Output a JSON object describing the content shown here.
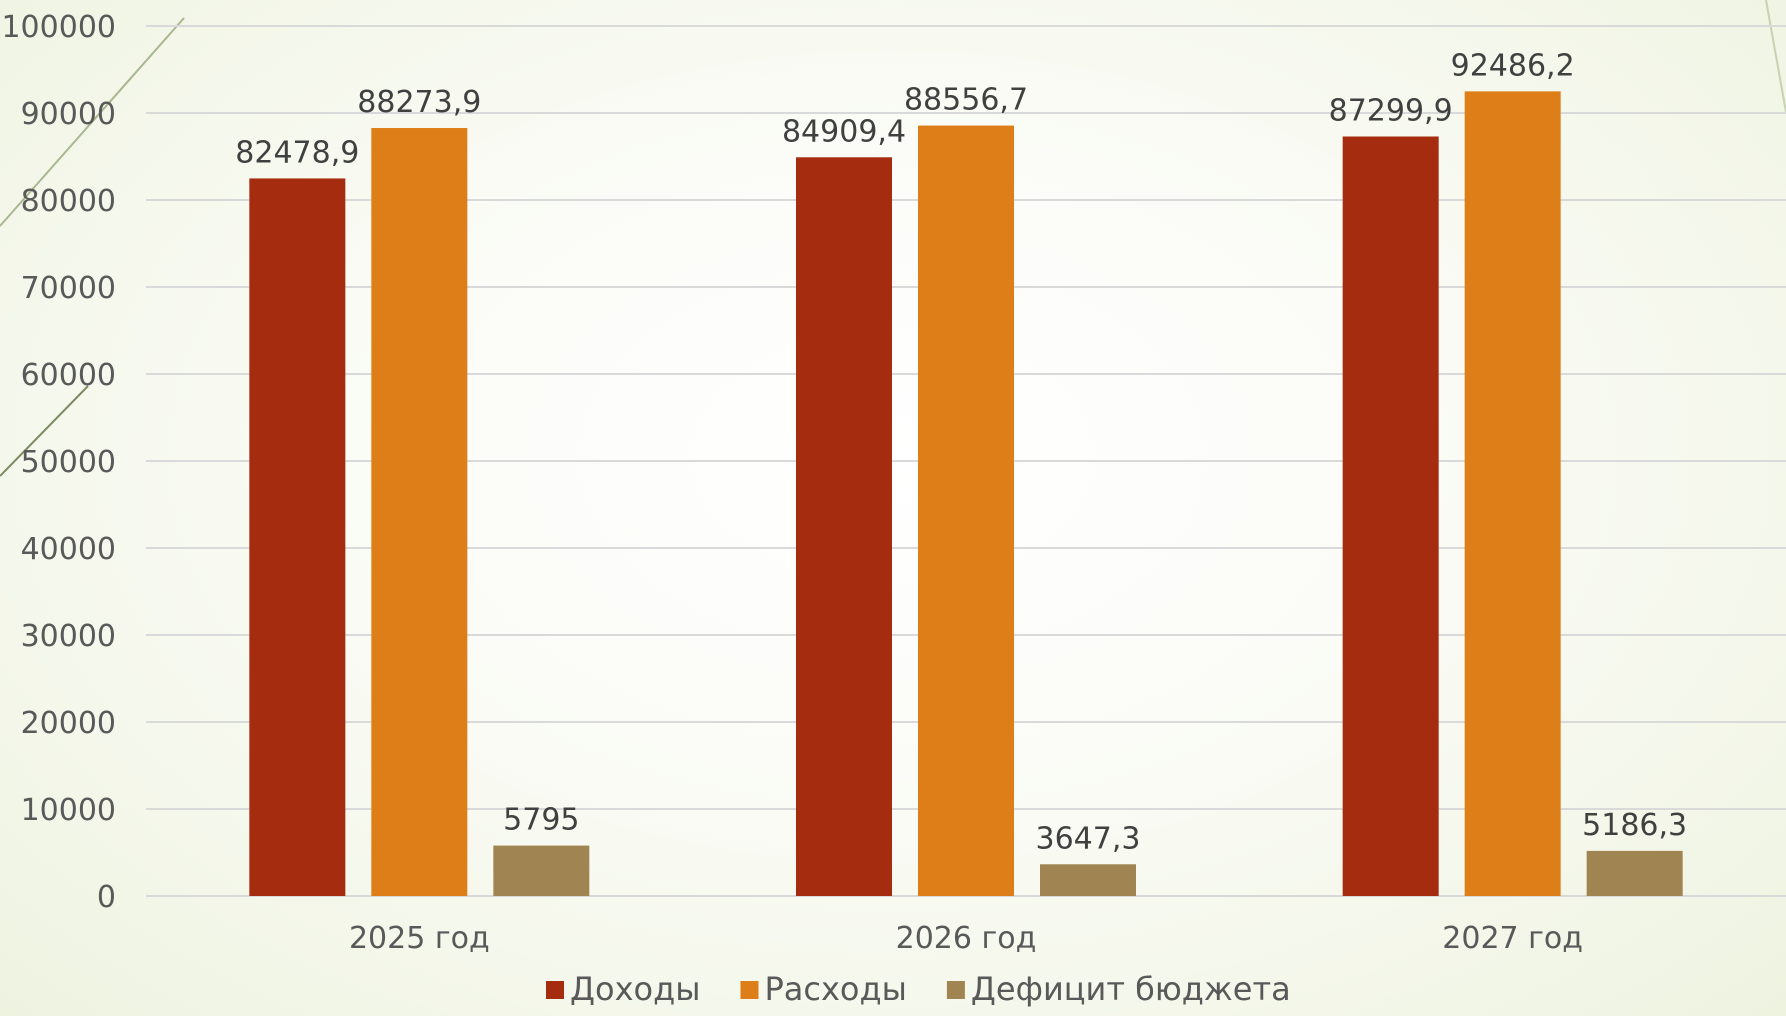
{
  "chart_data": {
    "type": "bar",
    "categories": [
      "2025 год",
      "2026 год",
      "2027 год"
    ],
    "series": [
      {
        "name": "Доходы",
        "values": [
          82478.9,
          84909.4,
          87299.9
        ],
        "labels": [
          "82478,9",
          "84909,4",
          "87299,9"
        ],
        "color": "#A52C0E"
      },
      {
        "name": "Расходы",
        "values": [
          88273.9,
          88556.7,
          92486.2
        ],
        "labels": [
          "88273,9",
          "88556,7",
          "92486,2"
        ],
        "color": "#DE7E18"
      },
      {
        "name": "Дефицит бюджета",
        "values": [
          5795,
          3647.3,
          5186.3
        ],
        "labels": [
          "5795",
          "3647,3",
          "5186,3"
        ],
        "color": "#A08552"
      }
    ],
    "yticks": [
      "0",
      "10000",
      "20000",
      "30000",
      "40000",
      "50000",
      "60000",
      "70000",
      "80000",
      "90000",
      "100000"
    ],
    "ylim": [
      0,
      100000
    ],
    "grid": true,
    "legend": "bottom",
    "title": "",
    "xlabel": "",
    "ylabel": ""
  }
}
